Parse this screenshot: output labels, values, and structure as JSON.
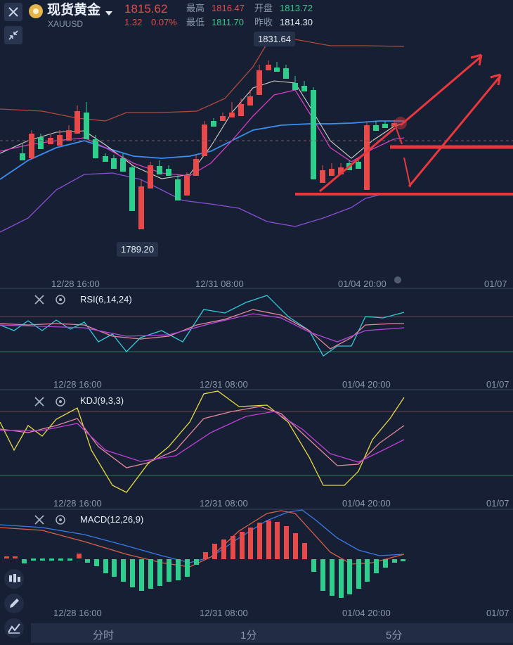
{
  "header": {
    "title": "现货黄金",
    "symbol": "XAUUSD",
    "price": "1815.62",
    "change": "1.32",
    "change_pct": "0.07%",
    "high_label": "最高",
    "high_value": "1816.47",
    "low_label": "最低",
    "low_value": "1811.70",
    "open_label": "开盘",
    "open_value": "1813.72",
    "prev_close_label": "昨收",
    "prev_close_value": "1814.30"
  },
  "main_chart": {
    "max_label": "1831.64",
    "min_label": "1789.20",
    "time_ticks": [
      "12/28 16:00",
      "12/31 08:00",
      "01/04 20:00",
      "01/07"
    ]
  },
  "rsi": {
    "label": "RSI(6,14,24)",
    "time_ticks": [
      "12/28  16:00",
      "12/31 08:00",
      "01/04 20:00",
      "01/07"
    ]
  },
  "kdj": {
    "label": "KDJ(9,3,3)",
    "time_ticks": [
      "12/28  16:00",
      "12/31 08:00",
      "01/04 20:00",
      "01/07"
    ]
  },
  "macd": {
    "label": "MACD(12,26,9)",
    "time_ticks": [
      "12/28  16:00",
      "12/31 08:00",
      "01/04 20:00",
      "01/07"
    ]
  },
  "tabs": [
    "分时",
    "1分",
    "5分"
  ],
  "icons": {
    "close": "close-icon",
    "shrink": "shrink-icon",
    "settings": "gear-icon",
    "candles": "candlestick-icon",
    "draw": "pencil-icon",
    "indicator": "indicator-icon"
  },
  "colors": {
    "up": "#e84a4a",
    "down": "#2ecf8c",
    "background": "#161f33"
  }
}
